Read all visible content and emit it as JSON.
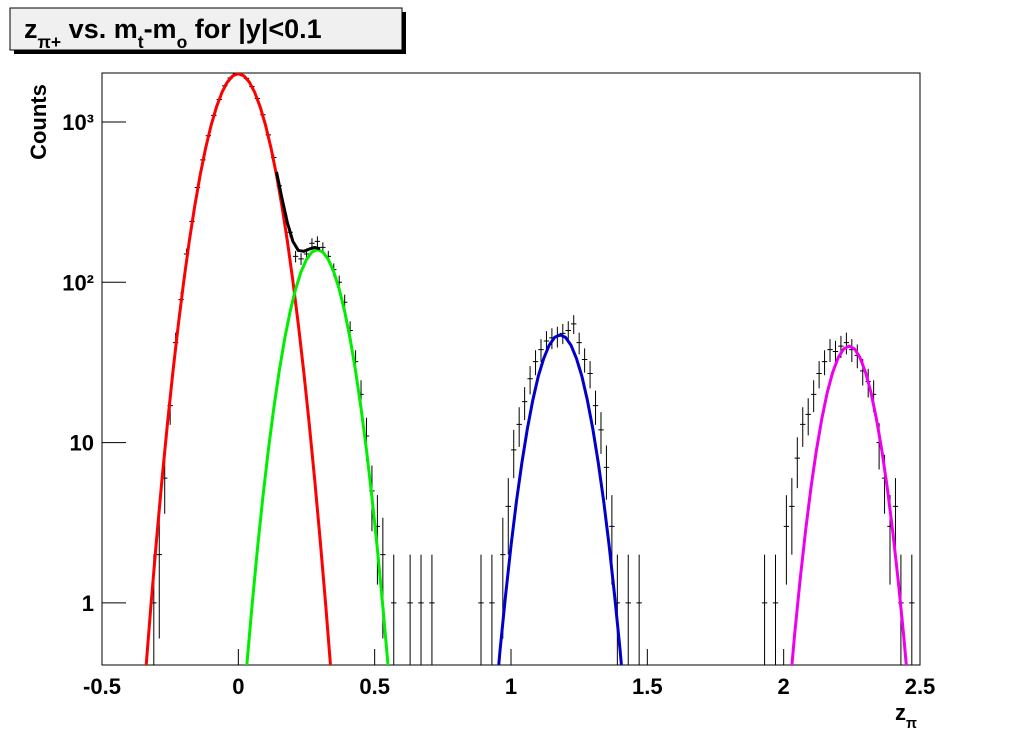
{
  "chart_data": {
    "type": "scatter",
    "title": [
      {
        "text": "z"
      },
      {
        "text": "π+",
        "sub": true
      },
      {
        "text": " vs. m"
      },
      {
        "text": "t",
        "sub": true
      },
      {
        "text": "-m"
      },
      {
        "text": "o",
        "sub": true
      },
      {
        "text": " for |y|<0.1"
      }
    ],
    "x_label": [
      {
        "text": "z"
      },
      {
        "text": "π",
        "sub": true
      }
    ],
    "y_label": "Counts",
    "xlim": [
      -0.5,
      2.5
    ],
    "xticks": [
      -0.5,
      0,
      0.5,
      1,
      1.5,
      2,
      2.5
    ],
    "ylim": [
      0.41,
      2020
    ],
    "log_y": true,
    "yticks": [
      1,
      10,
      {
        "value": 100,
        "label": "10²"
      },
      {
        "value": 1000,
        "label": "10³"
      }
    ],
    "grid": false,
    "series": [
      {
        "type": "errorbar",
        "color": "#000000",
        "x": [
          -0.31,
          -0.29,
          -0.27,
          -0.25,
          -0.23,
          -0.21,
          -0.19,
          -0.17,
          -0.15,
          -0.13,
          -0.11,
          -0.09,
          -0.07,
          -0.05,
          -0.03,
          -0.01,
          0.01,
          0.03,
          0.05,
          0.07,
          0.09,
          0.11,
          0.13,
          0.15,
          0.17,
          0.19,
          0.21,
          0.23,
          0.25,
          0.27,
          0.29,
          0.31,
          0.33,
          0.35,
          0.37,
          0.39,
          0.41,
          0.43,
          0.45,
          0.47,
          0.49,
          0.51,
          0.53,
          0.57,
          0.63,
          0.67,
          0.71,
          0.89,
          0.93,
          0.97,
          0.99,
          1.01,
          1.03,
          1.05,
          1.07,
          1.09,
          1.11,
          1.13,
          1.15,
          1.17,
          1.19,
          1.21,
          1.23,
          1.25,
          1.27,
          1.29,
          1.31,
          1.33,
          1.35,
          1.37,
          1.39,
          1.43,
          1.47,
          1.93,
          1.97,
          2.01,
          2.03,
          2.05,
          2.07,
          2.09,
          2.11,
          2.13,
          2.15,
          2.17,
          2.19,
          2.21,
          2.23,
          2.25,
          2.27,
          2.29,
          2.31,
          2.33,
          2.35,
          2.37,
          2.39,
          2.41,
          2.43,
          2.47
        ],
        "values": [
          1,
          2,
          6,
          17,
          42,
          78,
          150,
          240,
          390,
          580,
          820,
          1100,
          1380,
          1680,
          1880,
          1990,
          1970,
          1870,
          1660,
          1400,
          1110,
          830,
          600,
          400,
          260,
          205,
          145,
          140,
          150,
          175,
          180,
          165,
          145,
          120,
          100,
          75,
          50,
          32,
          20,
          11,
          5,
          3,
          2,
          1,
          1,
          1,
          1,
          1,
          1,
          2,
          4,
          9,
          13,
          18,
          25,
          32,
          38,
          43,
          45,
          46,
          48,
          50,
          55,
          42,
          33,
          27,
          17,
          12,
          7,
          3,
          1,
          1,
          1,
          1,
          1,
          3,
          4,
          8,
          13,
          15,
          20,
          27,
          32,
          38,
          37,
          40,
          42,
          38,
          35,
          28,
          24,
          20,
          10,
          6,
          3,
          4,
          1,
          1
        ],
        "errors": [
          1,
          1.4,
          2.4,
          4.1,
          6.5,
          8.8,
          12.2,
          15.5,
          19.7,
          24.1,
          28.6,
          33.2,
          37.1,
          41,
          43.4,
          44.6,
          44.4,
          43.2,
          40.7,
          37.4,
          33.3,
          28.8,
          24.5,
          20,
          16.1,
          14.3,
          12,
          11.8,
          12.2,
          13.2,
          13.4,
          12.8,
          12,
          11,
          10,
          8.7,
          7.1,
          5.7,
          4.5,
          3.3,
          2.2,
          1.7,
          1.4,
          1,
          1,
          1,
          1,
          1,
          1,
          1.4,
          2,
          3,
          3.6,
          4.2,
          5,
          5.7,
          6.2,
          6.6,
          6.7,
          6.8,
          6.9,
          7.1,
          7.4,
          6.5,
          5.7,
          5.2,
          4.1,
          3.5,
          2.6,
          1.7,
          1,
          1,
          1,
          1,
          1,
          1.7,
          2,
          2.8,
          3.6,
          3.9,
          4.5,
          5.2,
          5.7,
          6.2,
          6.1,
          6.3,
          6.5,
          6.2,
          5.9,
          5.3,
          4.9,
          4.5,
          3.2,
          2.4,
          1.7,
          2,
          1,
          1
        ]
      },
      {
        "type": "line",
        "color": "#ff0000",
        "x": [
          -0.34,
          -0.32,
          -0.3,
          -0.28,
          -0.26,
          -0.24,
          -0.22,
          -0.2,
          -0.18,
          -0.16,
          -0.14,
          -0.12,
          -0.1,
          -0.08,
          -0.06,
          -0.04,
          -0.02,
          0,
          0.02,
          0.04,
          0.06,
          0.08,
          0.1,
          0.12,
          0.14,
          0.16,
          0.18,
          0.2,
          0.22,
          0.24,
          0.26,
          0.28,
          0.3,
          0.32,
          0.34
        ],
        "values": [
          0.37,
          0.99,
          2.48,
          5.88,
          13.1,
          27.6,
          54.6,
          102,
          180,
          298,
          466,
          686,
          951,
          1243,
          1530,
          1776,
          1941,
          2000,
          1941,
          1776,
          1530,
          1243,
          951,
          686,
          466,
          298,
          180,
          102,
          54.6,
          27.6,
          13.1,
          5.88,
          2.48,
          0.99,
          0.37
        ]
      },
      {
        "type": "line",
        "color": "#00ee00",
        "x": [
          0.03,
          0.05,
          0.07,
          0.09,
          0.11,
          0.13,
          0.15,
          0.17,
          0.19,
          0.21,
          0.23,
          0.25,
          0.27,
          0.29,
          0.31,
          0.33,
          0.35,
          0.37,
          0.39,
          0.41,
          0.43,
          0.45,
          0.47,
          0.49,
          0.51,
          0.53,
          0.55
        ],
        "values": [
          0.39,
          0.95,
          2.17,
          4.57,
          8.98,
          16.4,
          28,
          44.5,
          65.8,
          90.6,
          116.2,
          138.8,
          154.4,
          160,
          154.4,
          138.8,
          116.2,
          90.6,
          65.8,
          44.5,
          28,
          16.4,
          8.98,
          4.57,
          2.17,
          0.95,
          0.39
        ]
      },
      {
        "type": "line",
        "color": "#000000",
        "x": [
          0.14,
          0.16,
          0.18,
          0.2,
          0.22,
          0.24,
          0.26,
          0.28,
          0.3
        ],
        "values": [
          488,
          334,
          235,
          180,
          158,
          156,
          161,
          165,
          162
        ]
      },
      {
        "type": "line",
        "color": "#0000cc",
        "x": [
          0.94,
          0.96,
          0.98,
          1,
          1.02,
          1.04,
          1.06,
          1.08,
          1.1,
          1.12,
          1.14,
          1.16,
          1.18,
          1.2,
          1.22,
          1.24,
          1.26,
          1.28,
          1.3,
          1.32,
          1.34,
          1.36,
          1.38,
          1.4,
          1.42
        ],
        "values": [
          0.21,
          0.51,
          1.11,
          2.27,
          4.3,
          7.5,
          12.2,
          18.4,
          25.9,
          33.5,
          40.5,
          45.3,
          47,
          45.3,
          40.5,
          33.5,
          25.9,
          18.4,
          12.2,
          7.5,
          4.3,
          2.27,
          1.11,
          0.51,
          0.21
        ]
      },
      {
        "type": "line",
        "color": "#ee00ee",
        "x": [
          2.02,
          2.04,
          2.06,
          2.08,
          2.1,
          2.12,
          2.14,
          2.16,
          2.18,
          2.2,
          2.22,
          2.24,
          2.26,
          2.28,
          2.3,
          2.32,
          2.34,
          2.36,
          2.38,
          2.4,
          2.42,
          2.44,
          2.46
        ],
        "values": [
          0.26,
          0.63,
          1.38,
          2.79,
          5.22,
          8.95,
          14.1,
          20.6,
          27.5,
          33.9,
          38.4,
          40,
          38.4,
          33.9,
          27.5,
          20.6,
          14.1,
          8.95,
          5.22,
          2.79,
          1.38,
          0.63,
          0.26
        ]
      }
    ]
  }
}
